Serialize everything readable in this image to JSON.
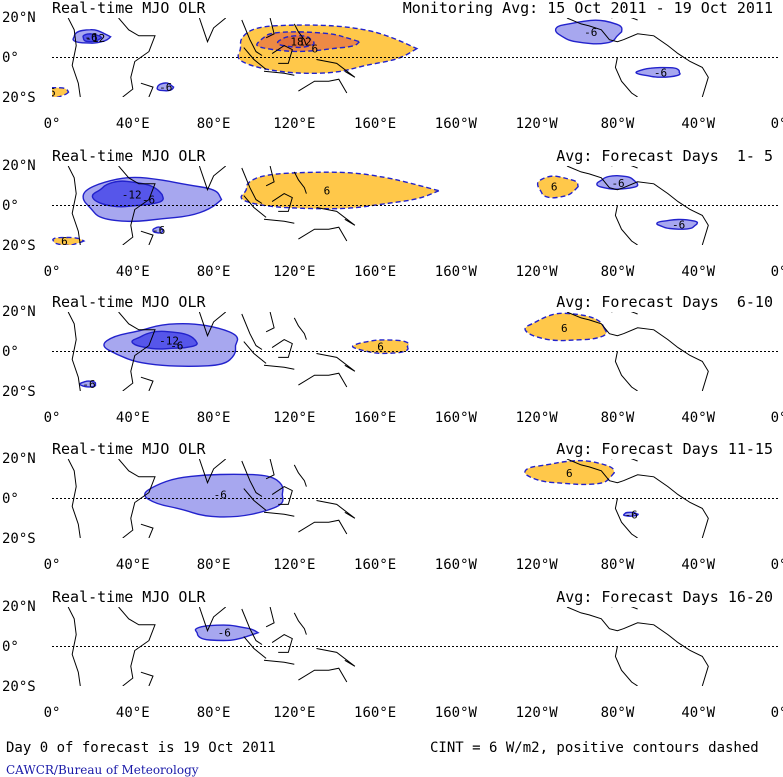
{
  "figure": {
    "panels": [
      {
        "title": "Real-time MJO OLR",
        "avg": "Monitoring Avg: 15 Oct 2011 - 19 Oct 2011",
        "contours": [
          {
            "sign": "neg",
            "level": -6,
            "lon": [
              10,
              28
            ],
            "lat": [
              7,
              14
            ]
          },
          {
            "sign": "neg",
            "level": -12,
            "lon": [
              15,
              24
            ],
            "lat": [
              8,
              12
            ]
          },
          {
            "sign": "pos",
            "level": 6,
            "lon": [
              -5,
              8
            ],
            "lat": [
              -20,
              -15
            ]
          },
          {
            "sign": "neg",
            "level": -6,
            "lon": [
              52,
              60
            ],
            "lat": [
              -17,
              -13
            ]
          },
          {
            "sign": "pos",
            "level": 6,
            "lon": [
              88,
              175
            ],
            "lat": [
              -8,
              17
            ]
          },
          {
            "sign": "pos",
            "level": 12,
            "lon": [
              100,
              150
            ],
            "lat": [
              3,
              13
            ]
          },
          {
            "sign": "pos",
            "level": 18,
            "lon": [
              112,
              130
            ],
            "lat": [
              5,
              11
            ]
          },
          {
            "sign": "neg",
            "level": -6,
            "lon": [
              250,
              283
            ],
            "lat": [
              7,
              19
            ]
          },
          {
            "sign": "neg",
            "level": -6,
            "lon": [
              290,
              312
            ],
            "lat": [
              -10,
              -5
            ]
          }
        ]
      },
      {
        "title": "Real-time MJO OLR",
        "avg": "Avg: Forecast Days  1- 5",
        "contours": [
          {
            "sign": "neg",
            "level": -6,
            "lon": [
              13,
              82
            ],
            "lat": [
              -8,
              14
            ]
          },
          {
            "sign": "neg",
            "level": -12,
            "lon": [
              20,
              55
            ],
            "lat": [
              -1,
              12
            ]
          },
          {
            "sign": "pos",
            "level": 6,
            "lon": [
              0,
              15
            ],
            "lat": [
              -20,
              -16
            ]
          },
          {
            "sign": "neg",
            "level": -6,
            "lon": [
              50,
              55
            ],
            "lat": [
              -14,
              -11
            ]
          },
          {
            "sign": "pos",
            "level": 6,
            "lon": [
              90,
              185
            ],
            "lat": [
              -2,
              17
            ]
          },
          {
            "sign": "pos",
            "level": 6,
            "lon": [
              240,
              260
            ],
            "lat": [
              4,
              15
            ]
          },
          {
            "sign": "neg",
            "level": -6,
            "lon": [
              270,
              290
            ],
            "lat": [
              8,
              15
            ]
          },
          {
            "sign": "neg",
            "level": -6,
            "lon": [
              300,
              320
            ],
            "lat": [
              -12,
              -7
            ]
          }
        ]
      },
      {
        "title": "Real-time MJO OLR",
        "avg": "Avg: Forecast Days  6-10",
        "contours": [
          {
            "sign": "neg",
            "level": -6,
            "lon": [
              28,
              95
            ],
            "lat": [
              -8,
              14
            ]
          },
          {
            "sign": "neg",
            "level": -12,
            "lon": [
              40,
              72
            ],
            "lat": [
              1,
              10
            ]
          },
          {
            "sign": "neg",
            "level": -6,
            "lon": [
              14,
              22
            ],
            "lat": [
              -18,
              -15
            ]
          },
          {
            "sign": "pos",
            "level": 6,
            "lon": [
              150,
              178
            ],
            "lat": [
              -1,
              6
            ]
          },
          {
            "sign": "pos",
            "level": 6,
            "lon": [
              235,
              275
            ],
            "lat": [
              5,
              19
            ]
          }
        ]
      },
      {
        "title": "Real-time MJO OLR",
        "avg": "Avg: Forecast Days 11-15",
        "contours": [
          {
            "sign": "neg",
            "level": -6,
            "lon": [
              48,
              118
            ],
            "lat": [
              -9,
              13
            ]
          },
          {
            "sign": "pos",
            "level": 6,
            "lon": [
              235,
              280
            ],
            "lat": [
              7,
              19
            ]
          },
          {
            "sign": "neg",
            "level": -6,
            "lon": [
              283,
              290
            ],
            "lat": [
              -9,
              -7
            ]
          }
        ]
      },
      {
        "title": "Real-time MJO OLR",
        "avg": "Avg: Forecast Days 16-20",
        "contours": [
          {
            "sign": "neg",
            "level": -6,
            "lon": [
              70,
              100
            ],
            "lat": [
              3,
              11
            ]
          }
        ]
      }
    ],
    "lat_labels": [
      "20°N",
      "0°",
      "20°S"
    ],
    "lon_labels": [
      "0°",
      "40°E",
      "80°E",
      "120°E",
      "160°E",
      "160°W",
      "120°W",
      "80°W",
      "40°W",
      "0°"
    ],
    "contour_labels": [
      "-6",
      "-12",
      "6",
      "-6"
    ],
    "colors": {
      "neg_light": "#a7a7ef",
      "neg_dark": "#5656ea",
      "neg_line": "#2222cc",
      "pos_light": "#ffc84a",
      "pos_dark": "#ee8a44",
      "line": "#000000"
    },
    "footer_left": "Day 0 of forecast is 19 Oct 2011",
    "footer_right": "CINT = 6 W/m2, positive contours dashed",
    "credit": "CAWCR/Bureau of Meteorology"
  }
}
